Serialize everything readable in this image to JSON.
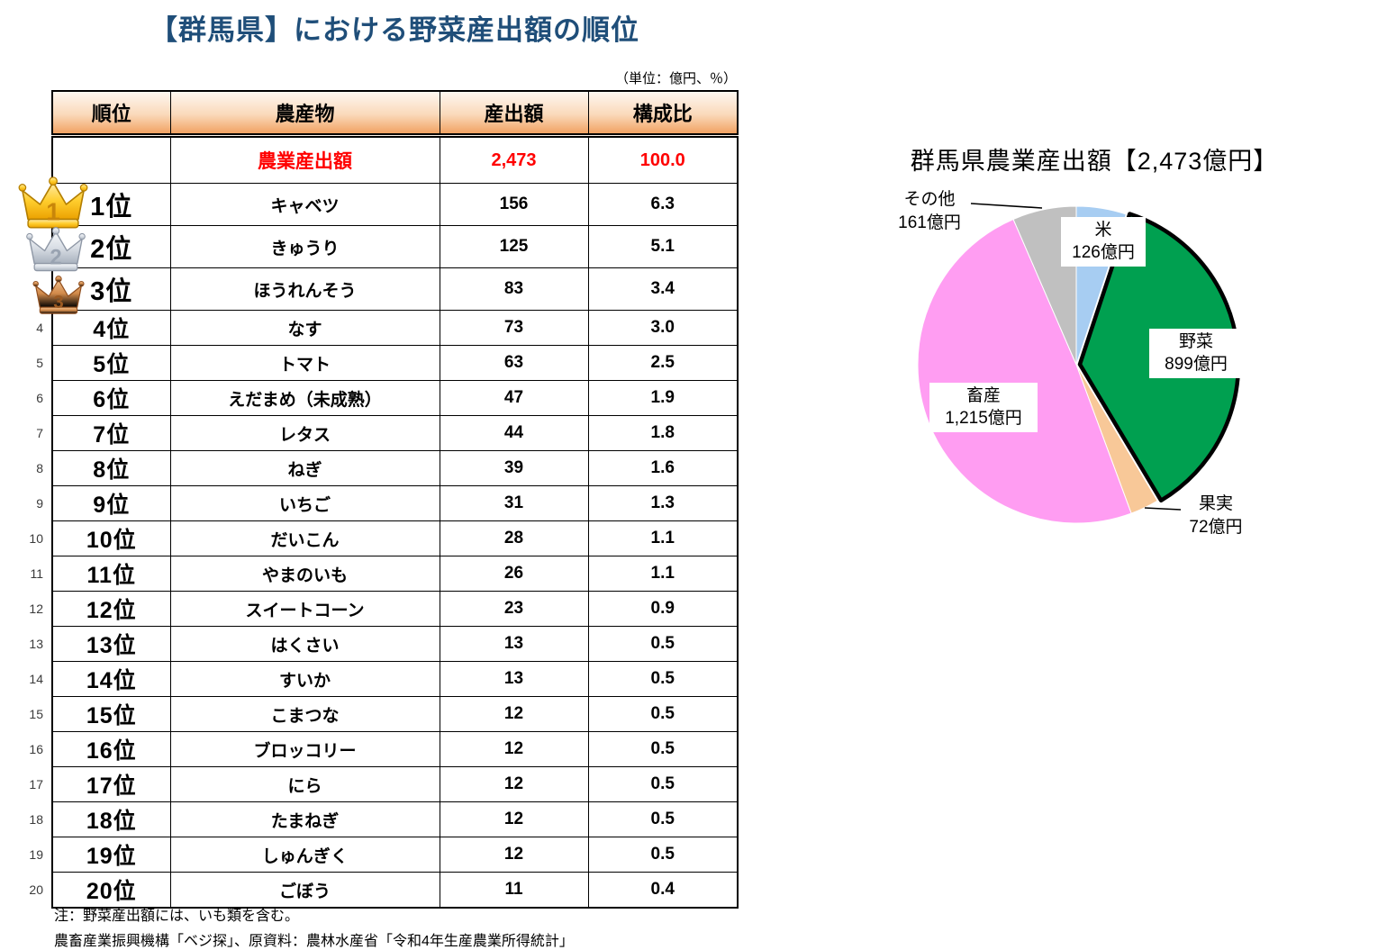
{
  "page": {
    "title": "【群馬県】における野菜産出額の順位",
    "unit_note": "（単位：億円、％）",
    "notes": [
      "注：野菜産出額には、いも類を含む。",
      "農畜産業振興機構「ベジ探」、原資料：農林水産省「令和4年生産農業所得統計」"
    ]
  },
  "table": {
    "headers": [
      "順位",
      "農産物",
      "産出額",
      "構成比"
    ],
    "total_row": {
      "rank": "",
      "product": "農業産出額",
      "value": "2,473",
      "share": "100.0"
    },
    "rows": [
      {
        "rank": "1位",
        "product": "キャベツ",
        "value": "156",
        "share": "6.3",
        "medal": "gold"
      },
      {
        "rank": "2位",
        "product": "きゅうり",
        "value": "125",
        "share": "5.1",
        "medal": "silver"
      },
      {
        "rank": "3位",
        "product": "ほうれんそう",
        "value": "83",
        "share": "3.4",
        "medal": "bronze"
      },
      {
        "rank": "4位",
        "product": "なす",
        "value": "73",
        "share": "3.0",
        "index": "4"
      },
      {
        "rank": "5位",
        "product": "トマト",
        "value": "63",
        "share": "2.5",
        "index": "5"
      },
      {
        "rank": "6位",
        "product": "えだまめ（未成熟）",
        "value": "47",
        "share": "1.9",
        "index": "6"
      },
      {
        "rank": "7位",
        "product": "レタス",
        "value": "44",
        "share": "1.8",
        "index": "7"
      },
      {
        "rank": "8位",
        "product": "ねぎ",
        "value": "39",
        "share": "1.6",
        "index": "8"
      },
      {
        "rank": "9位",
        "product": "いちご",
        "value": "31",
        "share": "1.3",
        "index": "9"
      },
      {
        "rank": "10位",
        "product": "だいこん",
        "value": "28",
        "share": "1.1",
        "index": "10"
      },
      {
        "rank": "11位",
        "product": "やまのいも",
        "value": "26",
        "share": "1.1",
        "index": "11"
      },
      {
        "rank": "12位",
        "product": "スイートコーン",
        "value": "23",
        "share": "0.9",
        "index": "12"
      },
      {
        "rank": "13位",
        "product": "はくさい",
        "value": "13",
        "share": "0.5",
        "index": "13"
      },
      {
        "rank": "14位",
        "product": "すいか",
        "value": "13",
        "share": "0.5",
        "index": "14"
      },
      {
        "rank": "15位",
        "product": "こまつな",
        "value": "12",
        "share": "0.5",
        "index": "15"
      },
      {
        "rank": "16位",
        "product": "ブロッコリー",
        "value": "12",
        "share": "0.5",
        "index": "16"
      },
      {
        "rank": "17位",
        "product": "にら",
        "value": "12",
        "share": "0.5",
        "index": "17"
      },
      {
        "rank": "18位",
        "product": "たまねぎ",
        "value": "12",
        "share": "0.5",
        "index": "18"
      },
      {
        "rank": "19位",
        "product": "しゅんぎく",
        "value": "12",
        "share": "0.5",
        "index": "19"
      },
      {
        "rank": "20位",
        "product": "ごぼう",
        "value": "11",
        "share": "0.4",
        "index": "20"
      }
    ]
  },
  "crowns": [
    {
      "number": "1",
      "kind": "gold"
    },
    {
      "number": "2",
      "kind": "silver"
    },
    {
      "number": "3",
      "kind": "bronze"
    }
  ],
  "pie": {
    "title": "群馬県農業産出額【2,473億円】",
    "slices": [
      {
        "name": "rice",
        "label": "米",
        "value_label": "126億円",
        "color": "#A7CDF2"
      },
      {
        "name": "vegetable",
        "label": "野菜",
        "value_label": "899億円",
        "color": "#00A050"
      },
      {
        "name": "fruit",
        "label": "果実",
        "value_label": "72億円",
        "color": "#F8C898"
      },
      {
        "name": "livestock",
        "label": "畜産",
        "value_label": "1,215億円",
        "color": "#FF9DF2"
      },
      {
        "name": "other",
        "label": "その他",
        "value_label": "161億円",
        "color": "#C0C0C0"
      }
    ]
  },
  "colors": {
    "title_blue": "#1F4E79",
    "total_red": "#FF0000",
    "header_orange": "#F1A263",
    "vegetable_outline": "#000000"
  },
  "chart_data": [
    {
      "type": "table",
      "title": "【群馬県】における野菜産出額の順位",
      "unit": "億円、％",
      "columns": [
        "順位",
        "農産物",
        "産出額",
        "構成比"
      ],
      "rows": [
        [
          "",
          "農業産出額",
          2473,
          100.0
        ],
        [
          "1位",
          "キャベツ",
          156,
          6.3
        ],
        [
          "2位",
          "きゅうり",
          125,
          5.1
        ],
        [
          "3位",
          "ほうれんそう",
          83,
          3.4
        ],
        [
          "4位",
          "なす",
          73,
          3.0
        ],
        [
          "5位",
          "トマト",
          63,
          2.5
        ],
        [
          "6位",
          "えだまめ（未成熟）",
          47,
          1.9
        ],
        [
          "7位",
          "レタス",
          44,
          1.8
        ],
        [
          "8位",
          "ねぎ",
          39,
          1.6
        ],
        [
          "9位",
          "いちご",
          31,
          1.3
        ],
        [
          "10位",
          "だいこん",
          28,
          1.1
        ],
        [
          "11位",
          "やまのいも",
          26,
          1.1
        ],
        [
          "12位",
          "スイートコーン",
          23,
          0.9
        ],
        [
          "13位",
          "はくさい",
          13,
          0.5
        ],
        [
          "14位",
          "すいか",
          13,
          0.5
        ],
        [
          "15位",
          "こまつな",
          12,
          0.5
        ],
        [
          "16位",
          "ブロッコリー",
          12,
          0.5
        ],
        [
          "17位",
          "にら",
          12,
          0.5
        ],
        [
          "18位",
          "たまねぎ",
          12,
          0.5
        ],
        [
          "19位",
          "しゅんぎく",
          12,
          0.5
        ],
        [
          "20位",
          "ごぼう",
          11,
          0.4
        ]
      ]
    },
    {
      "type": "pie",
      "title": "群馬県農業産出額【2,473億円】",
      "categories": [
        "米",
        "野菜",
        "果実",
        "畜産",
        "その他"
      ],
      "values": [
        126,
        899,
        72,
        1215,
        161
      ],
      "total": 2473,
      "unit": "億円",
      "start_angle_deg": 0,
      "direction": "clockwise",
      "colors": [
        "#A7CDF2",
        "#00A050",
        "#F8C898",
        "#FF9DF2",
        "#C0C0C0"
      ],
      "highlighted_slice": "野菜",
      "legend_position": "data-labels"
    }
  ]
}
